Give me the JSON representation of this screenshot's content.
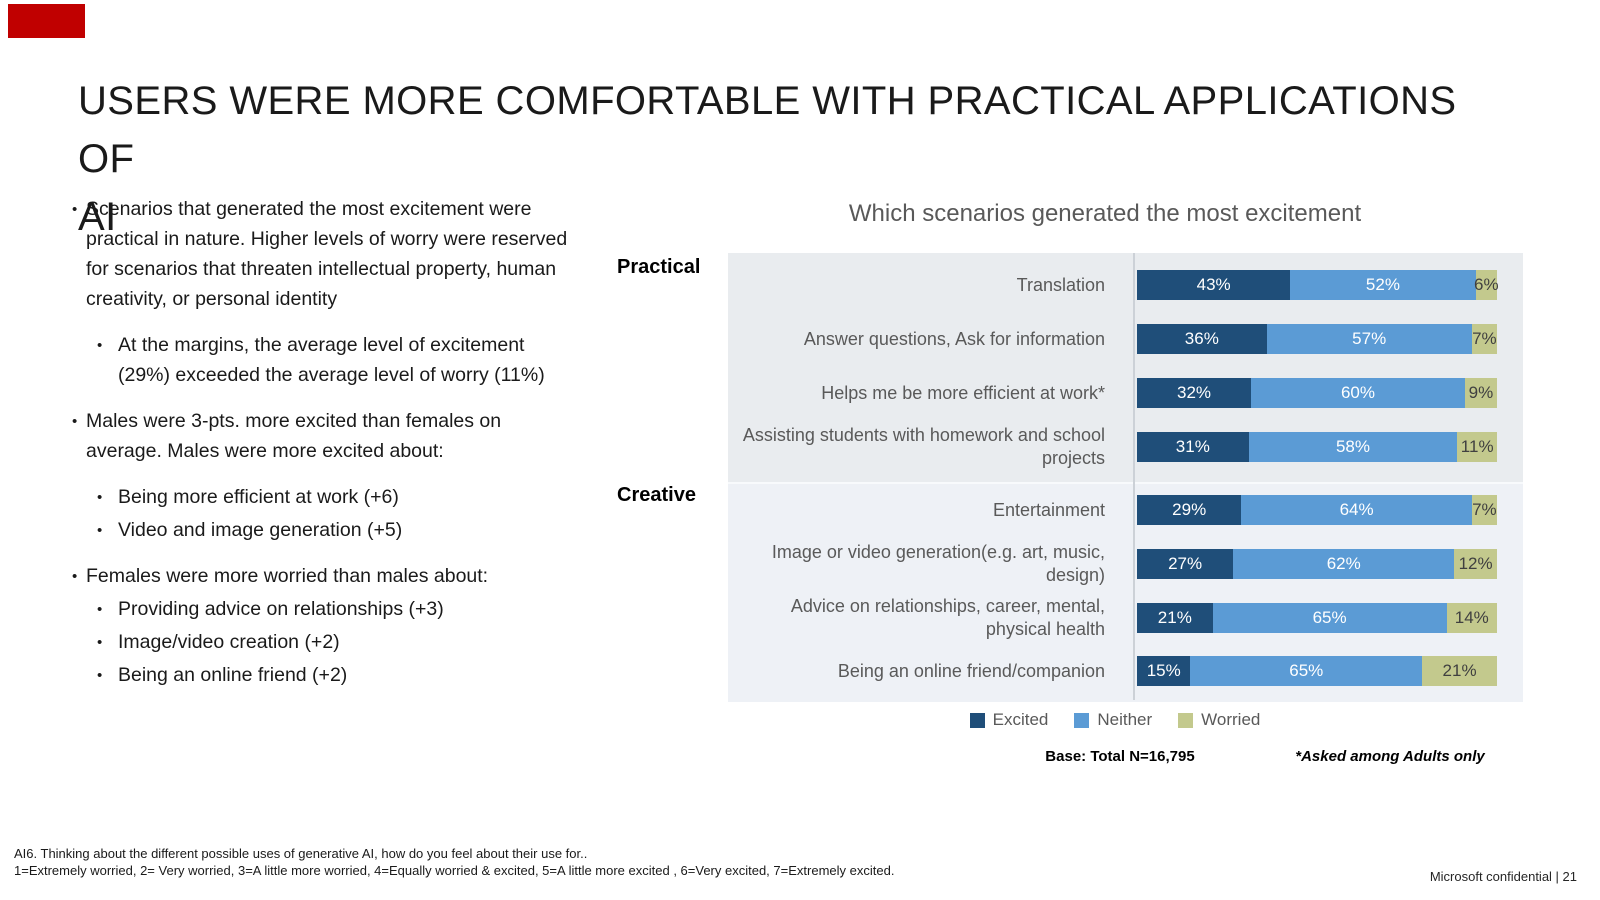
{
  "slide": {
    "title_line1": "USERS WERE MORE COMFORTABLE WITH PRACTICAL APPLICATIONS OF",
    "title_line2": "AI",
    "accent_color": "#C00000"
  },
  "bullets": [
    {
      "level": 1,
      "text": "Scenarios that generated the most excitement were practical in nature. Higher levels of worry were reserved for scenarios that threaten intellectual property, human creativity, or personal identity"
    },
    {
      "level": 2,
      "text": "At the margins, the average level of excitement (29%) exceeded the average level of worry (11%)"
    },
    {
      "level": 1,
      "text": "Males were 3-pts. more excited than females on average. Males were more excited about:"
    },
    {
      "level": 2,
      "text": "Being more efficient at work (+6)"
    },
    {
      "level": 2,
      "text": "Video and image generation (+5)"
    },
    {
      "level": 1,
      "text": "Females were more worried than males about:"
    },
    {
      "level": 2,
      "text": "Providing advice on relationships (+3)"
    },
    {
      "level": 2,
      "text": "Image/video creation (+2)"
    },
    {
      "level": 2,
      "text": "Being an online friend (+2)"
    }
  ],
  "chart": {
    "title": "Which scenarios generated the most excitement",
    "group_labels": [
      "Practical",
      "Creative"
    ],
    "base_note": "Base: Total N=16,795",
    "asterisk_note": "*Asked among Adults only",
    "series_names": [
      "Excited",
      "Neither",
      "Worried"
    ],
    "series_colors": [
      "#1f4e79",
      "#5b9bd5",
      "#c3c98d"
    ],
    "rows": [
      {
        "group": "Practical",
        "label": "Translation",
        "values": [
          43,
          52,
          6
        ]
      },
      {
        "group": "Practical",
        "label": "Answer questions, Ask for information",
        "values": [
          36,
          57,
          7
        ]
      },
      {
        "group": "Practical",
        "label": "Helps me be more efficient at work*",
        "values": [
          32,
          60,
          9
        ]
      },
      {
        "group": "Practical",
        "label": "Assisting students with homework and school projects",
        "values": [
          31,
          58,
          11
        ]
      },
      {
        "group": "Creative",
        "label": "Entertainment",
        "values": [
          29,
          64,
          7
        ]
      },
      {
        "group": "Creative",
        "label": "Image or video generation(e.g. art, music, design)",
        "values": [
          27,
          62,
          12
        ]
      },
      {
        "group": "Creative",
        "label": "Advice on relationships, career, mental, physical health",
        "values": [
          21,
          65,
          14
        ]
      },
      {
        "group": "Creative",
        "label": "Being an online friend/companion",
        "values": [
          15,
          65,
          21
        ]
      }
    ]
  },
  "chart_data": {
    "type": "bar",
    "orientation": "horizontal-stacked",
    "title": "Which scenarios generated the most excitement",
    "categories": [
      "Translation",
      "Answer questions, Ask for information",
      "Helps me be more efficient at work*",
      "Assisting students with homework and school projects",
      "Entertainment",
      "Image or video generation(e.g. art, music, design)",
      "Advice on relationships, career, mental, physical health",
      "Being an online friend/companion"
    ],
    "category_groups": [
      "Practical",
      "Practical",
      "Practical",
      "Practical",
      "Creative",
      "Creative",
      "Creative",
      "Creative"
    ],
    "series": [
      {
        "name": "Excited",
        "color": "#1f4e79",
        "values": [
          43,
          36,
          32,
          31,
          29,
          27,
          21,
          15
        ]
      },
      {
        "name": "Neither",
        "color": "#5b9bd5",
        "values": [
          52,
          57,
          60,
          58,
          64,
          62,
          65,
          65
        ]
      },
      {
        "name": "Worried",
        "color": "#c3c98d",
        "values": [
          6,
          7,
          9,
          11,
          7,
          12,
          14,
          21
        ]
      }
    ],
    "xlim": [
      0,
      100
    ],
    "legend_position": "bottom",
    "grid": false,
    "notes": [
      "Base: Total N=16,795",
      "*Asked among Adults only"
    ]
  },
  "footer": {
    "question_note": "AI6. Thinking about the different possible uses of generative AI, how do you feel about their use for..",
    "scale_note": "1=Extremely worried, 2= Very worried, 3=A little more worried, 4=Equally worried & excited, 5=A little more excited , 6=Very excited, 7=Extremely excited.",
    "confidential": "Microsoft confidential | 21"
  }
}
